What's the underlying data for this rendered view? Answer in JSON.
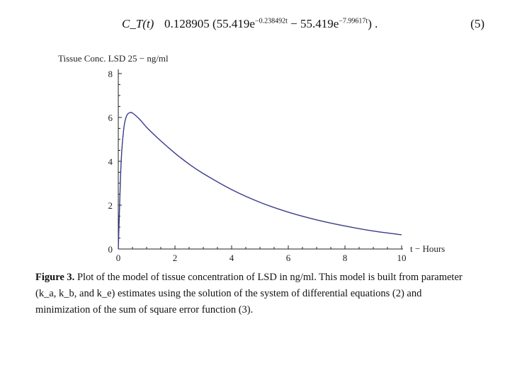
{
  "equation": {
    "lhs": "C_T(t)",
    "rhs_prefix": "0.128905 (55.419e",
    "exp1": "−0.238492t",
    "rhs_mid": " − 55.419e",
    "exp2": "−7.99617t",
    "rhs_suffix": ") .",
    "number": "(5)"
  },
  "chart_data": {
    "type": "line",
    "ylabel": "Tissue Conc. LSD 25 − ng/ml",
    "xlabel": "t − Hours",
    "xlim": [
      0,
      10
    ],
    "ylim": [
      0,
      8
    ],
    "x_ticks": [
      "0",
      "2",
      "4",
      "6",
      "8",
      "10"
    ],
    "y_ticks": [
      "0",
      "2",
      "4",
      "6",
      "8"
    ],
    "x": [
      0,
      0.1,
      0.2,
      0.3,
      0.4,
      0.5,
      0.75,
      1,
      1.5,
      2,
      2.5,
      3,
      4,
      5,
      6,
      7,
      8,
      9,
      10
    ],
    "y": [
      0,
      3.95,
      5.55,
      6.09,
      6.21,
      6.2,
      5.92,
      5.55,
      4.93,
      4.37,
      3.87,
      3.44,
      2.71,
      2.13,
      1.68,
      1.33,
      1.05,
      0.82,
      0.65
    ],
    "line_color": "#3a3a8c",
    "grid": false
  },
  "caption": {
    "label": "Figure 3.",
    "text": " Plot of the model of tissue concentration of LSD in ng/ml. This model is built from parameter (k_a, k_b, and k_e) estimates using the solution of the system of differential equations (2) and minimization of the sum of square error function (3)."
  }
}
